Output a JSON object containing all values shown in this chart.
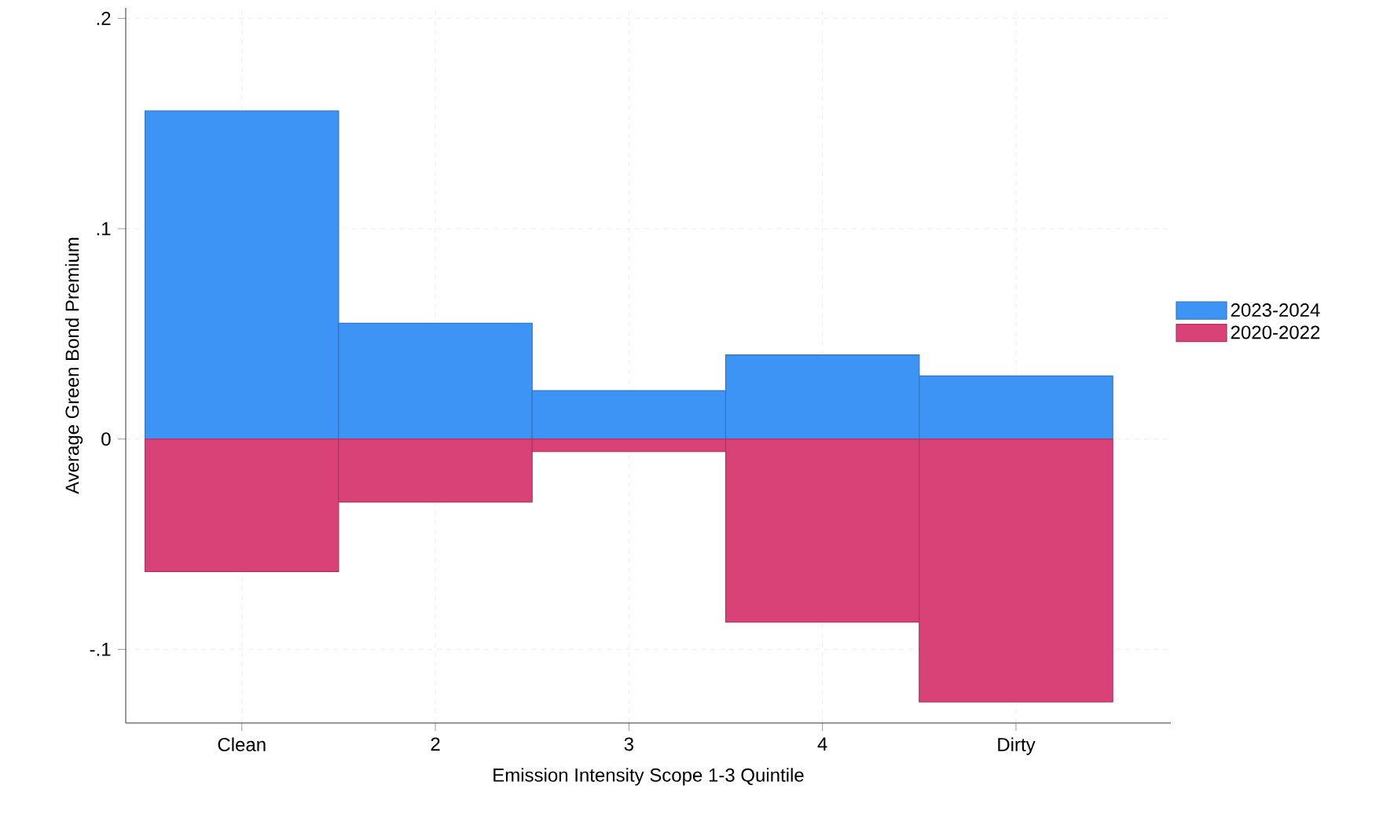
{
  "chart_data": {
    "type": "bar",
    "xlabel": "Emission Intensity Scope 1-3 Quintile",
    "ylabel": "Average Green Bond Premium",
    "categories": [
      "Clean",
      "2",
      "3",
      "4",
      "Dirty"
    ],
    "series": [
      {
        "name": "2023-2024",
        "color": "#3d94f5",
        "values": [
          0.156,
          0.055,
          0.023,
          0.04,
          0.03
        ]
      },
      {
        "name": "2020-2022",
        "color": "#d94277",
        "values": [
          -0.063,
          -0.03,
          -0.006,
          -0.087,
          -0.125
        ]
      }
    ],
    "ylim": [
      -0.135,
      0.205
    ],
    "yticks": [
      {
        "value": -0.1,
        "label": "-.1"
      },
      0,
      {
        "value": 0.1,
        "label": ".1"
      },
      {
        "value": 0.2,
        "label": ".2"
      }
    ],
    "grid": true,
    "legend": "right",
    "stacked": true
  }
}
